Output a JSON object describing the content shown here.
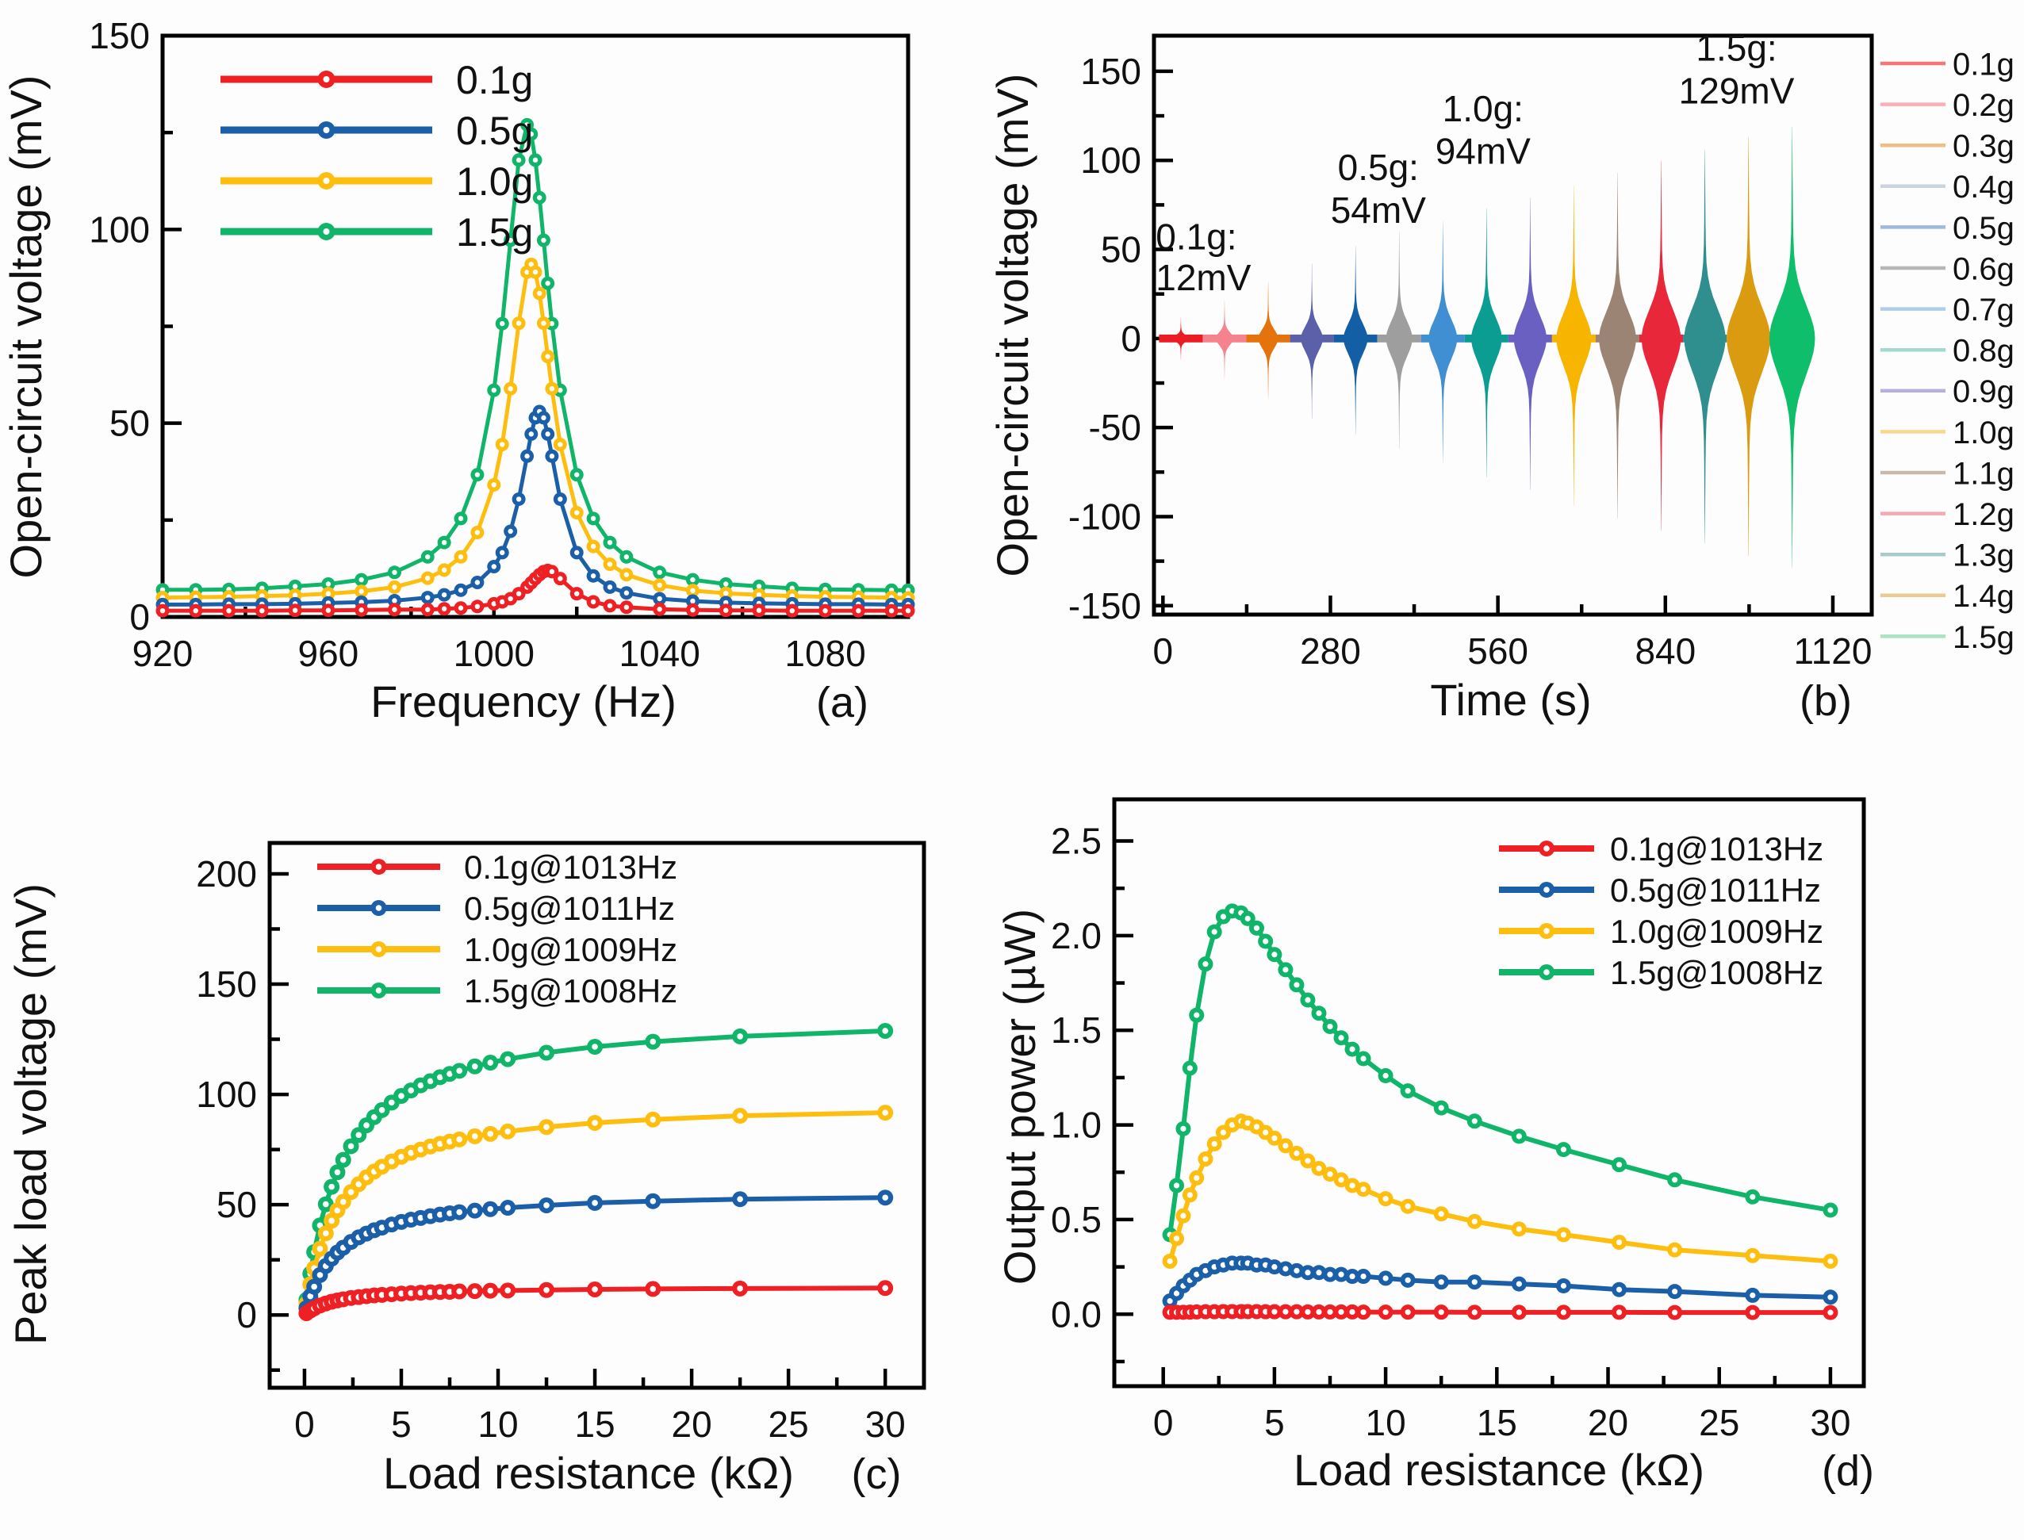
{
  "figure": {
    "background": "#fdfdfd",
    "axis_color": "#000000",
    "panel_letters": [
      "(a)",
      "(b)",
      "(c)",
      "(d)"
    ]
  },
  "chart_data": [
    {
      "id": "a",
      "type": "line",
      "panel_label": "(a)",
      "xlabel": "Frequency (Hz)",
      "ylabel": "Open-circuit voltage (mV)",
      "xlim": [
        920,
        1100
      ],
      "ylim": [
        0,
        150
      ],
      "xticks": [
        920,
        960,
        1000,
        1040,
        1080
      ],
      "xtick_labels": [
        "920",
        "960",
        "1000",
        "1040",
        "1080"
      ],
      "yticks": [
        0,
        50,
        100,
        150
      ],
      "ytick_labels": [
        "0",
        "50",
        "100",
        "150"
      ],
      "grid": false,
      "legend_position": "top-left",
      "legend_order": [
        "0.1g",
        "0.5g",
        "1.0g",
        "1.5g"
      ],
      "x": [
        920,
        928,
        936,
        944,
        952,
        960,
        968,
        976,
        984,
        988,
        992,
        996,
        1000,
        1002,
        1004,
        1006,
        1008,
        1009,
        1010,
        1011,
        1012,
        1013,
        1014,
        1016,
        1020,
        1024,
        1028,
        1032,
        1040,
        1048,
        1056,
        1064,
        1072,
        1080,
        1088,
        1096,
        1100
      ],
      "series": [
        {
          "name": "1.5g",
          "color": "#10B56A",
          "peak_mV": 127,
          "resonance_Hz": 1008,
          "y": [
            7.0,
            7.0,
            7.1,
            7.4,
            7.9,
            8.5,
            9.6,
            11.5,
            15.5,
            19.2,
            25.4,
            36.7,
            58.5,
            75.7,
            97.2,
            117.9,
            127,
            124.6,
            117.9,
            108.2,
            97.2,
            86.1,
            75.7,
            58.5,
            36.7,
            25.4,
            19.2,
            15.5,
            11.5,
            9.6,
            8.5,
            7.9,
            7.4,
            7.1,
            7.0,
            6.9,
            6.9
          ]
        },
        {
          "name": "1.0g",
          "color": "#FEBE10",
          "peak_mV": 91,
          "resonance_Hz": 1009,
          "y": [
            5.0,
            5.1,
            5.2,
            5.4,
            5.6,
            6.0,
            6.6,
            7.7,
            10.0,
            12.1,
            15.5,
            21.8,
            34.1,
            44.5,
            58.9,
            75.8,
            89.0,
            91,
            89.0,
            83.5,
            75.8,
            67.2,
            58.9,
            44.5,
            26.9,
            18.2,
            13.6,
            10.9,
            8.2,
            6.8,
            6.1,
            5.7,
            5.4,
            5.2,
            5.1,
            5.0,
            4.9
          ]
        },
        {
          "name": "0.5g",
          "color": "#1C5FA9",
          "peak_mV": 53,
          "resonance_Hz": 1011,
          "y": [
            3.2,
            3.2,
            3.3,
            3.3,
            3.4,
            3.6,
            3.8,
            4.2,
            5.0,
            5.7,
            6.9,
            8.9,
            13.0,
            16.6,
            22.1,
            30.4,
            41.5,
            47.2,
            51.4,
            53,
            51.4,
            47.2,
            41.5,
            30.4,
            16.6,
            10.6,
            7.7,
            6.2,
            4.7,
            4.1,
            3.7,
            3.5,
            3.4,
            3.3,
            3.3,
            3.2,
            3.2
          ]
        },
        {
          "name": "0.1g",
          "color": "#EE2024",
          "peak_mV": 12,
          "resonance_Hz": 1013,
          "y": [
            1.6,
            1.6,
            1.6,
            1.6,
            1.7,
            1.7,
            1.8,
            1.9,
            1.9,
            2.1,
            2.3,
            2.7,
            3.4,
            3.9,
            4.7,
            6.0,
            7.7,
            8.8,
            9.9,
            10.9,
            11.7,
            12,
            11.7,
            9.9,
            6.0,
            3.9,
            2.9,
            2.5,
            2.0,
            1.8,
            1.7,
            1.7,
            1.6,
            1.6,
            1.6,
            1.6,
            1.6
          ]
        }
      ]
    },
    {
      "id": "b",
      "type": "burst-envelope",
      "panel_label": "(b)",
      "xlabel": "Time (s)",
      "ylabel": "Open-circuit voltage (mV)",
      "xlim": [
        -15,
        1185
      ],
      "ylim": [
        -155,
        170
      ],
      "xticks": [
        0,
        280,
        560,
        840,
        1120
      ],
      "xtick_labels": [
        "0",
        "280",
        "560",
        "840",
        "1120"
      ],
      "yticks": [
        -150,
        -100,
        -50,
        0,
        50,
        100,
        150
      ],
      "ytick_labels": [
        "-150",
        "-100",
        "-50",
        "0",
        "50",
        "100",
        "150"
      ],
      "grid": false,
      "legend_position": "right-outside",
      "bursts": [
        {
          "label": "0.1g",
          "color": "#EC1C24",
          "center_s": 30,
          "pos_peak_mV": 12,
          "neg_peak_mV": -12,
          "halfwidth_s": 13.0
        },
        {
          "label": "0.2g",
          "color": "#F5828C",
          "center_s": 103,
          "pos_peak_mV": 22,
          "neg_peak_mV": -23,
          "halfwidth_s": 14.8
        },
        {
          "label": "0.3g",
          "color": "#E4730C",
          "center_s": 176,
          "pos_peak_mV": 32,
          "neg_peak_mV": -34,
          "halfwidth_s": 16.6
        },
        {
          "label": "0.4g",
          "color": "#5C60A8",
          "center_s": 249,
          "pos_peak_mV": 42,
          "neg_peak_mV": -45,
          "halfwidth_s": 18.4
        },
        {
          "label": "0.5g",
          "color": "#135FA5",
          "center_s": 322,
          "pos_peak_mV": 52,
          "neg_peak_mV": -54,
          "halfwidth_s": 20.2
        },
        {
          "label": "0.6g",
          "color": "#9E9E9E",
          "center_s": 395,
          "pos_peak_mV": 60,
          "neg_peak_mV": -62,
          "halfwidth_s": 22.0
        },
        {
          "label": "0.7g",
          "color": "#3F8FD2",
          "center_s": 468,
          "pos_peak_mV": 66,
          "neg_peak_mV": -70,
          "halfwidth_s": 23.8
        },
        {
          "label": "0.8g",
          "color": "#0B9C92",
          "center_s": 541,
          "pos_peak_mV": 73,
          "neg_peak_mV": -78,
          "halfwidth_s": 25.6
        },
        {
          "label": "0.9g",
          "color": "#6A60C2",
          "center_s": 614,
          "pos_peak_mV": 79,
          "neg_peak_mV": -85,
          "halfwidth_s": 27.4
        },
        {
          "label": "1.0g",
          "color": "#F7B500",
          "center_s": 687,
          "pos_peak_mV": 86,
          "neg_peak_mV": -94,
          "halfwidth_s": 29.2
        },
        {
          "label": "1.1g",
          "color": "#9C8474",
          "center_s": 760,
          "pos_peak_mV": 93,
          "neg_peak_mV": -101,
          "halfwidth_s": 31.0
        },
        {
          "label": "1.2g",
          "color": "#E8273B",
          "center_s": 833,
          "pos_peak_mV": 100,
          "neg_peak_mV": -108,
          "halfwidth_s": 32.8
        },
        {
          "label": "1.3g",
          "color": "#2F8F8F",
          "center_s": 906,
          "pos_peak_mV": 106,
          "neg_peak_mV": -115,
          "halfwidth_s": 34.6
        },
        {
          "label": "1.4g",
          "color": "#DB9B10",
          "center_s": 979,
          "pos_peak_mV": 113,
          "neg_peak_mV": -122,
          "halfwidth_s": 36.4
        },
        {
          "label": "1.5g",
          "color": "#0FBE6B",
          "center_s": 1052,
          "pos_peak_mV": 119,
          "neg_peak_mV": -129,
          "halfwidth_s": 38.2
        }
      ],
      "legend": [
        {
          "label": "0.1g",
          "color": "#F4767B"
        },
        {
          "label": "0.2g",
          "color": "#F9AFB5"
        },
        {
          "label": "0.3g",
          "color": "#F3BC85"
        },
        {
          "label": "0.4g",
          "color": "#CBD3DF"
        },
        {
          "label": "0.5g",
          "color": "#A0B8DF"
        },
        {
          "label": "0.6g",
          "color": "#B6B6B6"
        },
        {
          "label": "0.7g",
          "color": "#AFCDEA"
        },
        {
          "label": "0.8g",
          "color": "#A2D9D1"
        },
        {
          "label": "0.9g",
          "color": "#B7AFDF"
        },
        {
          "label": "1.0g",
          "color": "#F8D88E"
        },
        {
          "label": "1.1g",
          "color": "#C8B9AC"
        },
        {
          "label": "1.2g",
          "color": "#F5AAB2"
        },
        {
          "label": "1.3g",
          "color": "#A9CACA"
        },
        {
          "label": "1.4g",
          "color": "#EACA8E"
        },
        {
          "label": "1.5g",
          "color": "#A9E5C5"
        }
      ],
      "annotations": [
        {
          "lines": [
            "0.1g:",
            "12mV"
          ],
          "x": 50,
          "y1": 50,
          "y2": 27,
          "anchor": "start",
          "ax": -12
        },
        {
          "lines": [
            "0.5g:",
            "54mV"
          ],
          "x": 360,
          "y1": 89,
          "y2": 65,
          "anchor": "middle",
          "ax": 360
        },
        {
          "lines": [
            "1.0g:",
            "94mV"
          ],
          "x": 535,
          "y1": 122,
          "y2": 98,
          "anchor": "middle",
          "ax": 535
        },
        {
          "lines": [
            "1.5g:",
            "129mV"
          ],
          "x": 959,
          "y1": 156,
          "y2": 132,
          "anchor": "middle",
          "ax": 959
        }
      ]
    },
    {
      "id": "c",
      "type": "line",
      "panel_label": "(c)",
      "xlabel": "Load resistance (kΩ)",
      "ylabel": "Peak load voltage (mV)",
      "xlim": [
        -1.8,
        32
      ],
      "ylim": [
        -33,
        214
      ],
      "xticks": [
        0,
        5,
        10,
        15,
        20,
        25,
        30
      ],
      "xtick_labels": [
        "0",
        "5",
        "10",
        "15",
        "20",
        "25",
        "30"
      ],
      "yticks": [
        0,
        50,
        100,
        150,
        200
      ],
      "ytick_labels": [
        "0",
        "50",
        "100",
        "150",
        "200"
      ],
      "grid": false,
      "legend_position": "top-left",
      "legend_order": [
        "0.1g@1013Hz",
        "0.5g@1011Hz",
        "1.0g@1009Hz",
        "1.5g@1008Hz"
      ],
      "x": [
        0.1,
        0.3,
        0.5,
        0.8,
        1.1,
        1.4,
        1.7,
        2.0,
        2.4,
        2.8,
        3.2,
        3.6,
        4.0,
        4.5,
        5.0,
        5.5,
        6.0,
        6.5,
        7.0,
        7.5,
        8.0,
        8.8,
        9.6,
        10.5,
        12.5,
        15.0,
        18.0,
        22.5,
        30.0
      ],
      "series": [
        {
          "name": "1.5g@1008Hz",
          "color": "#10B56A",
          "saturation_mV": 129,
          "y": [
            6.9,
            18.7,
            28.5,
            40.6,
            50.2,
            58.1,
            64.7,
            70.3,
            76.5,
            81.6,
            86.0,
            89.7,
            92.9,
            96.3,
            99.3,
            101.8,
            104.1,
            106.0,
            107.8,
            109.3,
            110.7,
            112.7,
            114.4,
            116.0,
            118.9,
            121.6,
            123.9,
            126.3,
            128.8
          ]
        },
        {
          "name": "1.0g@1009Hz",
          "color": "#FEBE10",
          "saturation_mV": 92,
          "y": [
            5.1,
            13.9,
            21.2,
            30.0,
            37.0,
            42.7,
            47.4,
            51.3,
            55.7,
            59.3,
            62.4,
            65.0,
            67.2,
            69.6,
            71.7,
            73.5,
            75.0,
            76.4,
            77.6,
            78.6,
            79.6,
            81.0,
            82.1,
            83.2,
            85.2,
            87.1,
            88.6,
            90.3,
            91.7
          ]
        },
        {
          "name": "0.5g@1011Hz",
          "color": "#1C5FA9",
          "saturation_mV": 53,
          "y": [
            3.1,
            8.5,
            12.8,
            18.1,
            22.2,
            25.5,
            28.3,
            30.5,
            33.1,
            35.2,
            36.9,
            38.4,
            39.6,
            41.0,
            42.2,
            43.2,
            44.0,
            44.8,
            45.5,
            46.1,
            46.6,
            47.3,
            48.0,
            48.6,
            49.7,
            50.8,
            51.6,
            52.5,
            53.2
          ]
        },
        {
          "name": "0.1g@1013Hz",
          "color": "#EE2024",
          "saturation_mV": 12,
          "y": [
            0.8,
            2.0,
            3.0,
            4.3,
            5.2,
            6.0,
            6.6,
            7.1,
            7.7,
            8.1,
            8.5,
            8.9,
            9.1,
            9.4,
            9.7,
            9.9,
            10.1,
            10.3,
            10.4,
            10.5,
            10.7,
            10.8,
            11.0,
            11.1,
            11.3,
            11.6,
            11.8,
            12.0,
            12.2
          ]
        }
      ]
    },
    {
      "id": "d",
      "type": "line",
      "panel_label": "(d)",
      "xlabel": "Load resistance (kΩ)",
      "ylabel": "Output power (µW)",
      "xlim": [
        -2.2,
        31.5
      ],
      "ylim": [
        -0.38,
        2.72
      ],
      "xticks": [
        0,
        5,
        10,
        15,
        20,
        25,
        30
      ],
      "xtick_labels": [
        "0",
        "5",
        "10",
        "15",
        "20",
        "25",
        "30"
      ],
      "yticks": [
        0,
        0.5,
        1.0,
        1.5,
        2.0,
        2.5
      ],
      "ytick_labels": [
        "0.0",
        "0.5",
        "1.0",
        "1.5",
        "2.0",
        "2.5"
      ],
      "grid": false,
      "legend_position": "top-right",
      "legend_order": [
        "0.1g@1013Hz",
        "0.5g@1011Hz",
        "1.0g@1009Hz",
        "1.5g@1008Hz"
      ],
      "x": [
        0.3,
        0.6,
        0.9,
        1.2,
        1.5,
        1.9,
        2.3,
        2.7,
        3.1,
        3.5,
        3.8,
        4.2,
        4.6,
        5.0,
        5.5,
        6.0,
        6.5,
        7.0,
        7.5,
        8.0,
        8.5,
        9.0,
        10.0,
        11.0,
        12.5,
        14.0,
        16.0,
        18.0,
        20.5,
        23.0,
        26.5,
        30.0
      ],
      "series": [
        {
          "name": "1.5g@1008Hz",
          "color": "#10B56A",
          "peak_uW": 2.13,
          "peak_at_kOhm": 3.5,
          "y": [
            0.42,
            0.68,
            0.98,
            1.3,
            1.58,
            1.85,
            2.02,
            2.1,
            2.13,
            2.12,
            2.09,
            2.04,
            1.97,
            1.9,
            1.82,
            1.74,
            1.66,
            1.59,
            1.52,
            1.46,
            1.4,
            1.35,
            1.26,
            1.18,
            1.09,
            1.02,
            0.94,
            0.87,
            0.79,
            0.71,
            0.62,
            0.55
          ]
        },
        {
          "name": "1.0g@1009Hz",
          "color": "#FEBE10",
          "peak_uW": 1.02,
          "peak_at_kOhm": 3.5,
          "y": [
            0.28,
            0.4,
            0.52,
            0.63,
            0.72,
            0.82,
            0.9,
            0.96,
            1.0,
            1.02,
            1.01,
            0.99,
            0.96,
            0.93,
            0.89,
            0.85,
            0.81,
            0.77,
            0.74,
            0.71,
            0.68,
            0.66,
            0.61,
            0.57,
            0.53,
            0.49,
            0.45,
            0.42,
            0.38,
            0.34,
            0.31,
            0.28
          ]
        },
        {
          "name": "0.5g@1011Hz",
          "color": "#1C5FA9",
          "peak_uW": 0.27,
          "peak_at_kOhm": 3.8,
          "y": [
            0.07,
            0.11,
            0.15,
            0.18,
            0.21,
            0.23,
            0.25,
            0.26,
            0.27,
            0.27,
            0.27,
            0.26,
            0.26,
            0.25,
            0.24,
            0.23,
            0.22,
            0.22,
            0.21,
            0.21,
            0.2,
            0.2,
            0.19,
            0.18,
            0.17,
            0.17,
            0.16,
            0.15,
            0.13,
            0.12,
            0.1,
            0.09
          ]
        },
        {
          "name": "0.1g@1013Hz",
          "color": "#EE2024",
          "peak_uW": 0.014,
          "peak_at_kOhm": 3.0,
          "y": [
            0.01,
            0.01,
            0.01,
            0.011,
            0.012,
            0.013,
            0.013,
            0.014,
            0.014,
            0.014,
            0.014,
            0.014,
            0.013,
            0.013,
            0.013,
            0.013,
            0.012,
            0.012,
            0.012,
            0.012,
            0.012,
            0.011,
            0.011,
            0.011,
            0.011,
            0.01,
            0.01,
            0.01,
            0.01,
            0.009,
            0.009,
            0.009
          ]
        }
      ]
    }
  ]
}
